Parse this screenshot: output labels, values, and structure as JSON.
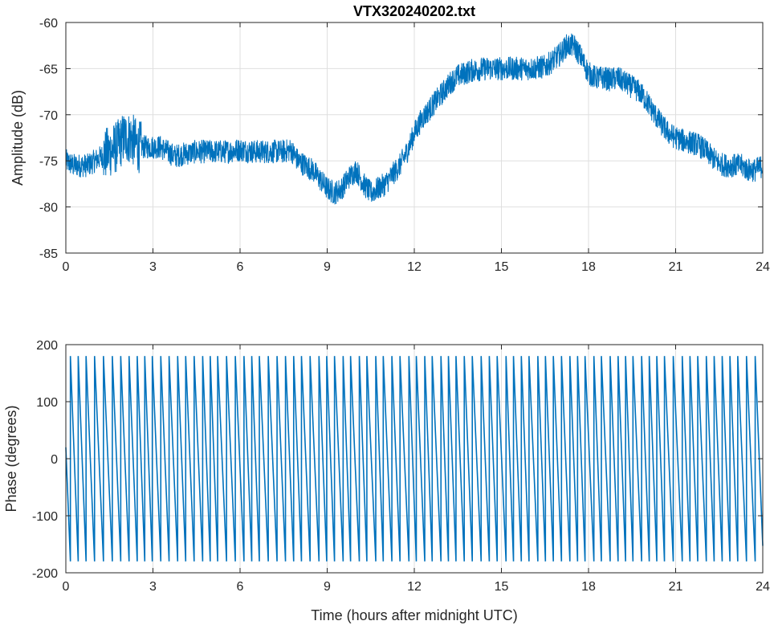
{
  "chart_data": [
    {
      "type": "line",
      "title": "VTX320240202.txt",
      "xlabel": "",
      "ylabel": "Amplitude (dB)",
      "xlim": [
        0,
        24
      ],
      "ylim": [
        -85,
        -60
      ],
      "xticks": [
        0,
        3,
        6,
        9,
        12,
        15,
        18,
        21,
        24
      ],
      "yticks": [
        -85,
        -80,
        -75,
        -70,
        -65,
        -60
      ],
      "grid": true,
      "color": "#0072BD",
      "noise_db": 1.3,
      "series": [
        {
          "x": [
            0,
            0.25,
            0.5,
            0.75,
            1.0,
            1.25,
            1.5,
            1.75,
            2.0,
            2.25,
            2.5,
            2.75,
            3.0,
            3.25,
            3.5,
            3.75,
            4.0,
            4.5,
            5.0,
            5.5,
            6.0,
            6.5,
            7.0,
            7.5,
            7.75,
            8.0,
            8.25,
            8.5,
            8.75,
            9.0,
            9.25,
            9.5,
            9.75,
            10.0,
            10.25,
            10.5,
            10.75,
            11.0,
            11.25,
            11.5,
            11.75,
            12.0,
            12.25,
            12.5,
            12.75,
            13.0,
            13.25,
            13.5,
            13.75,
            14.0,
            14.5,
            15.0,
            15.5,
            16.0,
            16.5,
            16.75,
            17.0,
            17.25,
            17.5,
            17.75,
            18.0,
            18.25,
            18.5,
            18.75,
            19.0,
            19.25,
            19.5,
            19.75,
            20.0,
            20.25,
            20.5,
            20.75,
            21.0,
            21.25,
            21.5,
            21.75,
            22.0,
            22.25,
            22.5,
            22.75,
            23.0,
            23.25,
            23.5,
            23.75,
            24.0
          ],
          "values": [
            -75.0,
            -75.5,
            -75.5,
            -75.5,
            -75.0,
            -74.5,
            -74.0,
            -73.5,
            -72.5,
            -72.5,
            -73.5,
            -73.5,
            -73.5,
            -73.5,
            -74.0,
            -74.5,
            -74.3,
            -74.0,
            -74.0,
            -74.0,
            -73.8,
            -74.0,
            -74.0,
            -74.0,
            -73.8,
            -75.0,
            -75.5,
            -76.0,
            -77.0,
            -78.0,
            -78.5,
            -78.0,
            -76.8,
            -76.0,
            -77.5,
            -78.5,
            -78.0,
            -77.5,
            -76.5,
            -75.5,
            -74.0,
            -72.0,
            -70.5,
            -69.5,
            -68.5,
            -67.5,
            -66.5,
            -65.8,
            -65.5,
            -65.2,
            -65.0,
            -65.0,
            -65.0,
            -65.0,
            -64.8,
            -64.2,
            -63.5,
            -62.5,
            -62.5,
            -63.8,
            -65.5,
            -66.0,
            -66.0,
            -66.2,
            -66.0,
            -66.5,
            -67.0,
            -67.5,
            -68.5,
            -69.8,
            -71.0,
            -72.0,
            -72.5,
            -72.8,
            -73.0,
            -73.2,
            -73.8,
            -74.6,
            -75.3,
            -75.5,
            -75.5,
            -75.5,
            -76.0,
            -76.0,
            -75.5
          ]
        }
      ]
    },
    {
      "type": "line",
      "title": "",
      "xlabel": "Time (hours after midnight UTC)",
      "ylabel": "Phase (degrees)",
      "xlim": [
        0,
        24
      ],
      "ylim": [
        -200,
        200
      ],
      "xticks": [
        0,
        3,
        6,
        9,
        12,
        15,
        18,
        21,
        24
      ],
      "yticks": [
        -200,
        -100,
        0,
        100,
        200
      ],
      "grid": true,
      "color": "#0072BD",
      "series": [
        {
          "description": "phase wrapping sawtooth between 180 and -180 degrees",
          "wrap_max": 180,
          "wrap_min": -180,
          "wrap_count": 85,
          "start_phase": 20
        }
      ]
    }
  ]
}
